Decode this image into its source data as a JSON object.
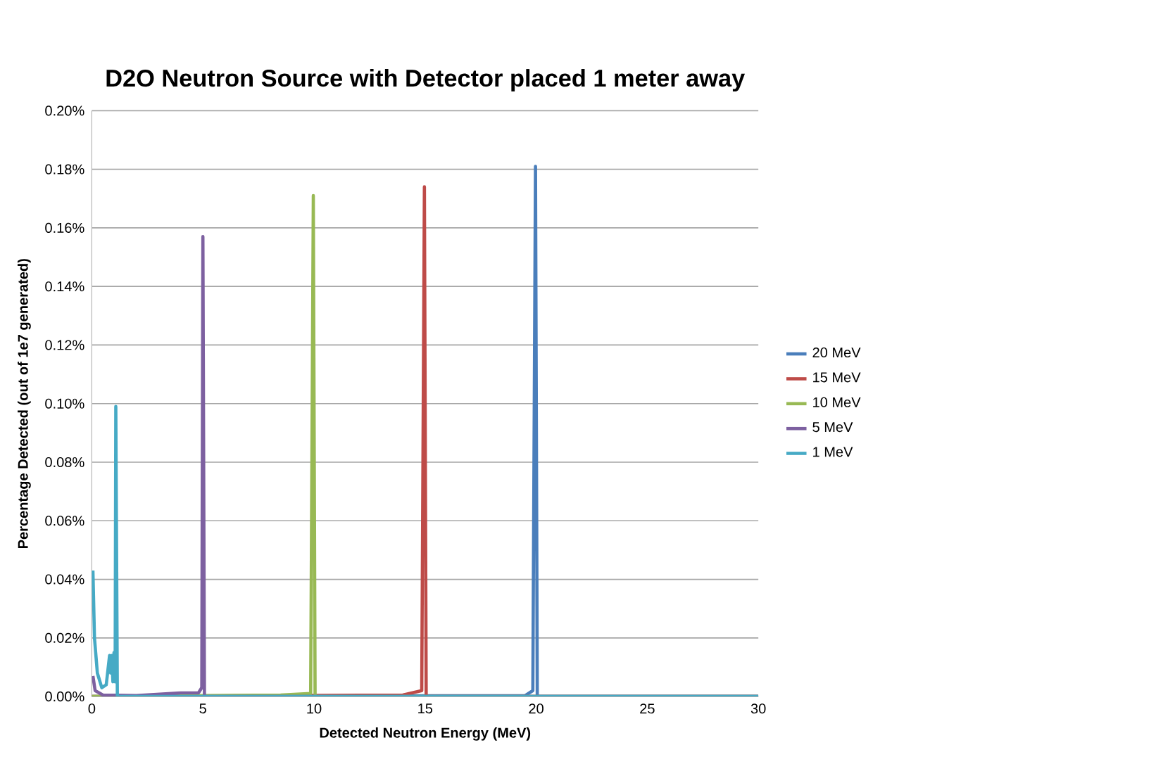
{
  "chart_data": {
    "type": "line",
    "title": "D2O Neutron Source with Detector  placed 1 meter away",
    "xlabel": "Detected Neutron Energy (MeV)",
    "ylabel": "Percentage Detected (out of 1e7 generated)",
    "xlim": [
      0,
      30
    ],
    "xticks": [
      0,
      5,
      10,
      15,
      20,
      25,
      30
    ],
    "ylim": [
      0,
      0.2
    ],
    "yticks": [
      {
        "value": 0,
        "label": "0.00%"
      },
      {
        "value": 0.02,
        "label": "0.02%"
      },
      {
        "value": 0.04,
        "label": "0.04%"
      },
      {
        "value": 0.06,
        "label": "0.06%"
      },
      {
        "value": 0.08,
        "label": "0.08%"
      },
      {
        "value": 0.1,
        "label": "0.10%"
      },
      {
        "value": 0.12,
        "label": "0.12%"
      },
      {
        "value": 0.14,
        "label": "0.14%"
      },
      {
        "value": 0.16,
        "label": "0.16%"
      },
      {
        "value": 0.18,
        "label": "0.18%"
      },
      {
        "value": 0.2,
        "label": "0.20%"
      }
    ],
    "grid": "y",
    "legend": "right",
    "marker": "none",
    "line_style": "solid",
    "series": [
      {
        "name": "20 MeV",
        "color": "#4a7ebb",
        "x": [
          0,
          19.5,
          19.85,
          19.97,
          20.05,
          30
        ],
        "values": [
          0,
          0.0003,
          0.002,
          0.181,
          0,
          0
        ]
      },
      {
        "name": "15 MeV",
        "color": "#be4b48",
        "x": [
          0,
          14,
          14.85,
          14.97,
          15.05,
          30
        ],
        "values": [
          0,
          0.0005,
          0.002,
          0.174,
          0,
          0
        ]
      },
      {
        "name": "10 MeV",
        "color": "#98b954",
        "x": [
          0,
          8.5,
          9.85,
          9.97,
          10.05,
          30
        ],
        "values": [
          0,
          0.0005,
          0.001,
          0.171,
          0,
          0
        ]
      },
      {
        "name": "5 MeV",
        "color": "#7d60a0",
        "x": [
          0.05,
          0.15,
          0.5,
          2,
          4,
          4.8,
          4.95,
          5,
          5.07,
          30
        ],
        "values": [
          0.007,
          0.002,
          0.0005,
          0.0003,
          0.0012,
          0.0012,
          0.003,
          0.157,
          0,
          0
        ]
      },
      {
        "name": "1 MeV",
        "color": "#46aac5",
        "x": [
          0.05,
          0.12,
          0.25,
          0.45,
          0.65,
          0.8,
          0.85,
          0.9,
          0.95,
          1.0,
          1.05,
          1.08,
          1.15,
          30
        ],
        "values": [
          0.043,
          0.02,
          0.008,
          0.003,
          0.004,
          0.014,
          0.008,
          0.014,
          0.005,
          0.015,
          0.005,
          0.099,
          0,
          0
        ]
      }
    ]
  }
}
